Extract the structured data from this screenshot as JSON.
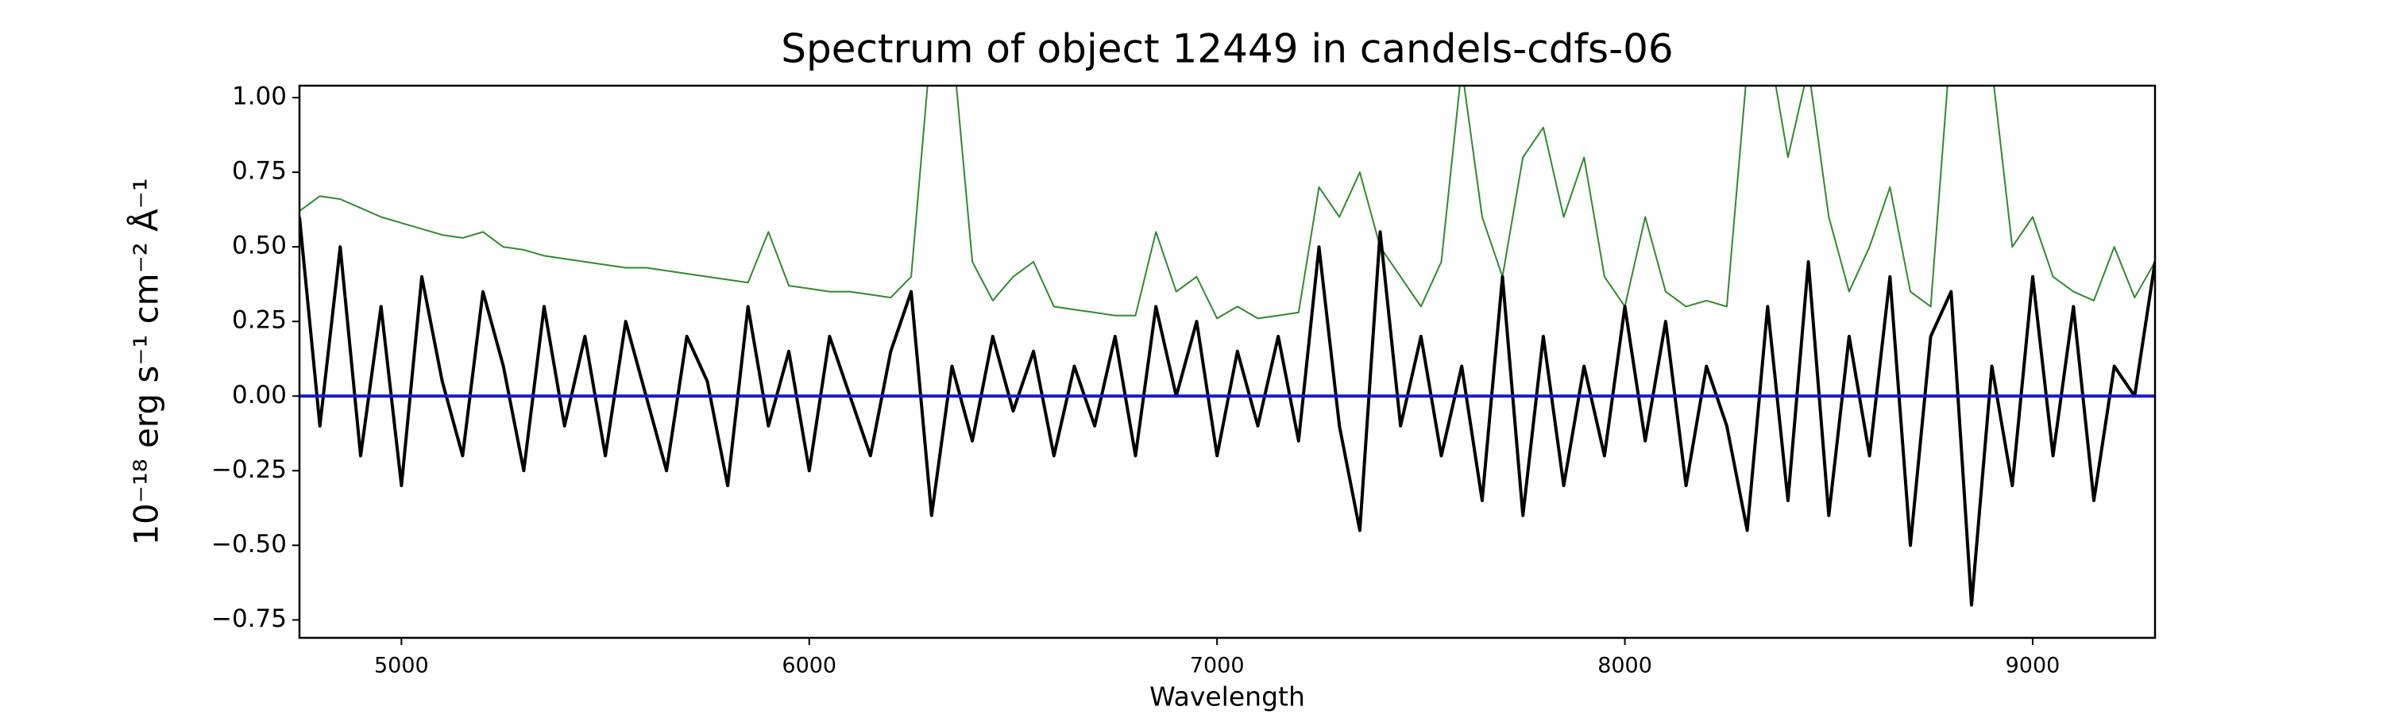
{
  "chart_data": {
    "type": "line",
    "title": "Spectrum of object 12449 in candels-cdfs-06",
    "x_label": "Wavelength",
    "y_label": "10⁻¹⁸ erg s⁻¹ cm⁻² Å⁻¹",
    "xlim": [
      4750,
      9300
    ],
    "ylim": [
      -0.81,
      1.04
    ],
    "xticks": [
      5000,
      6000,
      7000,
      8000,
      9000
    ],
    "yticks": [
      {
        "value": -0.75,
        "label": "−0.75"
      },
      {
        "value": -0.5,
        "label": "−0.50"
      },
      {
        "value": -0.25,
        "label": "−0.25"
      },
      {
        "value": 0,
        "label": "0.00"
      },
      0.25,
      {
        "value": 0.5,
        "label": "0.50"
      },
      0.75,
      {
        "value": 1,
        "label": "1.00"
      }
    ],
    "grid": false,
    "x": [
      4750,
      4800,
      4850,
      4900,
      4950,
      5000,
      5050,
      5100,
      5150,
      5200,
      5250,
      5300,
      5350,
      5400,
      5450,
      5500,
      5550,
      5600,
      5650,
      5700,
      5750,
      5800,
      5850,
      5900,
      5950,
      6000,
      6050,
      6100,
      6150,
      6200,
      6250,
      6300,
      6350,
      6400,
      6450,
      6500,
      6550,
      6600,
      6650,
      6700,
      6750,
      6800,
      6850,
      6900,
      6950,
      7000,
      7050,
      7100,
      7150,
      7200,
      7250,
      7300,
      7350,
      7400,
      7450,
      7500,
      7550,
      7600,
      7650,
      7700,
      7750,
      7800,
      7850,
      7900,
      7950,
      8000,
      8050,
      8100,
      8150,
      8200,
      8250,
      8300,
      8350,
      8400,
      8450,
      8500,
      8550,
      8600,
      8650,
      8700,
      8750,
      8800,
      8850,
      8900,
      8950,
      9000,
      9050,
      9100,
      9150,
      9200,
      9250,
      9300
    ],
    "series": [
      {
        "color": "#2e8b2e",
        "width": 2,
        "values": [
          0.62,
          0.67,
          0.66,
          0.63,
          0.6,
          0.58,
          0.56,
          0.54,
          0.53,
          0.55,
          0.5,
          0.49,
          0.47,
          0.46,
          0.45,
          0.44,
          0.43,
          0.43,
          0.42,
          0.41,
          0.4,
          0.39,
          0.38,
          0.55,
          0.37,
          0.36,
          0.35,
          0.35,
          0.34,
          0.33,
          0.4,
          1.2,
          1.2,
          0.45,
          0.32,
          0.4,
          0.45,
          0.3,
          0.29,
          0.28,
          0.27,
          0.27,
          0.55,
          0.35,
          0.4,
          0.26,
          0.3,
          0.26,
          0.27,
          0.28,
          0.7,
          0.6,
          0.75,
          0.5,
          0.4,
          0.3,
          0.45,
          1.1,
          0.6,
          0.4,
          0.8,
          0.9,
          0.6,
          0.8,
          0.4,
          0.3,
          0.6,
          0.35,
          0.3,
          0.32,
          0.3,
          1.1,
          1.2,
          0.8,
          1.1,
          0.6,
          0.35,
          0.5,
          0.7,
          0.35,
          0.3,
          1.2,
          1.1,
          1.1,
          0.5,
          0.6,
          0.4,
          0.35,
          0.32,
          0.5,
          0.33,
          0.45
        ]
      },
      {
        "color": "#000000",
        "width": 4,
        "values": [
          0.6,
          -0.1,
          0.5,
          -0.2,
          0.3,
          -0.3,
          0.4,
          0.05,
          -0.2,
          0.35,
          0.1,
          -0.25,
          0.3,
          -0.1,
          0.2,
          -0.2,
          0.25,
          0.0,
          -0.25,
          0.2,
          0.05,
          -0.3,
          0.3,
          -0.1,
          0.15,
          -0.25,
          0.2,
          0.0,
          -0.2,
          0.15,
          0.35,
          -0.4,
          0.1,
          -0.15,
          0.2,
          -0.05,
          0.15,
          -0.2,
          0.1,
          -0.1,
          0.2,
          -0.2,
          0.3,
          0.0,
          0.25,
          -0.2,
          0.15,
          -0.1,
          0.2,
          -0.15,
          0.5,
          -0.1,
          -0.45,
          0.55,
          -0.1,
          0.2,
          -0.2,
          0.1,
          -0.35,
          0.4,
          -0.4,
          0.2,
          -0.3,
          0.1,
          -0.2,
          0.3,
          -0.15,
          0.25,
          -0.3,
          0.1,
          -0.1,
          -0.45,
          0.3,
          -0.35,
          0.45,
          -0.4,
          0.2,
          -0.2,
          0.4,
          -0.5,
          0.2,
          0.35,
          -0.7,
          0.1,
          -0.3,
          0.4,
          -0.2,
          0.3,
          -0.35,
          0.1,
          0.0,
          0.45
        ]
      }
    ],
    "reference_lines": [
      {
        "y": 0,
        "color": "#1a1acc"
      }
    ]
  }
}
